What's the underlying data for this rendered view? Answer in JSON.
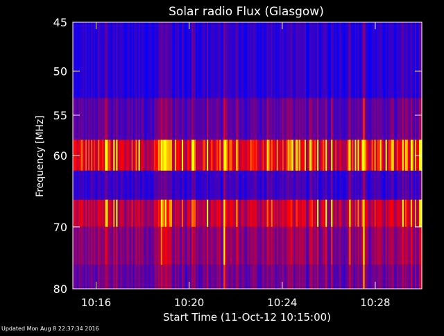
{
  "chart_data": {
    "type": "heatmap",
    "title": "Solar radio Flux (Glasgow)",
    "xlabel": "Start Time (11-Oct-12 10:15:00)",
    "ylabel": "Frequency [MHz]",
    "x_tick_labels": [
      "10:16",
      "10:20",
      "10:24",
      "10:28"
    ],
    "x_ticks_minutes": [
      16,
      20,
      24,
      28
    ],
    "xlim_minutes": [
      15,
      30
    ],
    "y_tick_labels": [
      "45",
      "50",
      "55",
      "60",
      "70",
      "80"
    ],
    "y_ticks": [
      45,
      50,
      55,
      60,
      70,
      80
    ],
    "ylim": [
      45,
      80
    ],
    "y_scale": "log",
    "y_inverted": true,
    "colormap": [
      "#0000ff",
      "#7f007f",
      "#ff0000",
      "#ffff00"
    ],
    "frequency_bands": [
      {
        "from": 45,
        "to": 53,
        "level": 0.12
      },
      {
        "from": 53,
        "to": 58,
        "level": 0.3
      },
      {
        "from": 58,
        "to": 62,
        "level": 0.72
      },
      {
        "from": 62,
        "to": 66,
        "level": 0.18
      },
      {
        "from": 66,
        "to": 70,
        "level": 0.62
      },
      {
        "from": 70,
        "to": 76,
        "level": 0.45
      },
      {
        "from": 76,
        "to": 80,
        "level": 0.35
      }
    ],
    "bright_events_minutes": [
      18.8,
      19.0,
      19.2,
      20.2,
      21.6,
      24.3,
      27.5
    ],
    "grid": false,
    "legend": "none"
  },
  "footer_text": "Updated Mon Aug  8 22:37:34 2016"
}
